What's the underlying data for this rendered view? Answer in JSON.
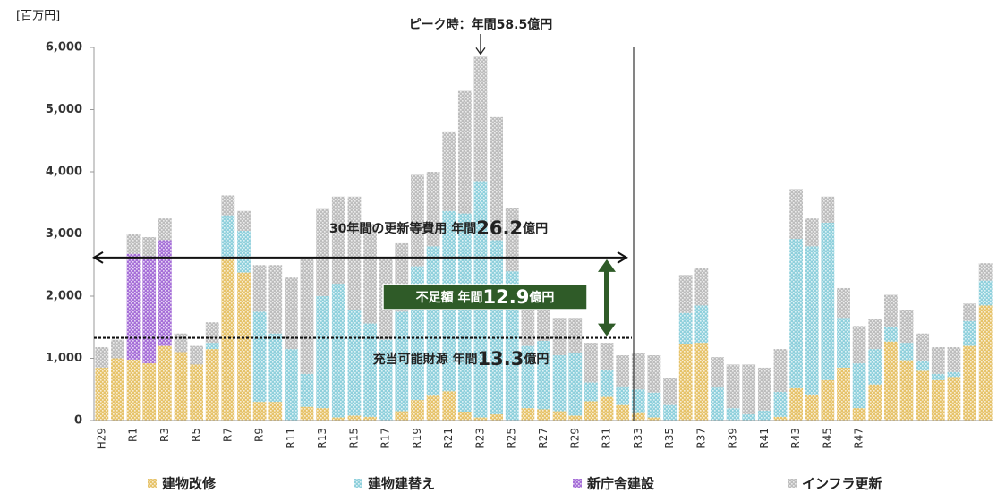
{
  "chart_data": {
    "type": "stacked_bar",
    "y_label": "[百万円]",
    "categories": [
      "H29",
      null,
      "R1",
      null,
      "R3",
      null,
      "R5",
      null,
      "R7",
      null,
      "R9",
      null,
      "R11",
      null,
      "R13",
      null,
      "R15",
      null,
      "R17",
      null,
      "R19",
      null,
      "R21",
      null,
      "R23",
      null,
      "R25",
      null,
      "R27",
      null,
      "R29",
      null,
      "R31",
      null,
      "R33",
      null,
      "R35",
      null,
      "R37",
      null,
      "R39",
      null,
      "R41",
      null,
      "R43",
      null,
      "R45",
      null,
      "R47",
      null,
      null,
      null,
      null,
      null,
      null,
      null,
      null
    ],
    "series": [
      {
        "name": "建物改修",
        "color": "#e6c36a",
        "values": [
          850,
          1000,
          980,
          920,
          1200,
          1100,
          900,
          1150,
          2600,
          2380,
          300,
          300,
          0,
          220,
          200,
          50,
          80,
          60,
          0,
          150,
          330,
          400,
          470,
          130,
          50,
          100,
          0,
          200,
          180,
          150,
          80,
          310,
          380,
          250,
          120,
          50,
          0,
          1230,
          1250,
          0,
          0,
          0,
          0,
          60,
          520,
          420,
          650,
          850,
          200,
          580,
          1270,
          970,
          800,
          650,
          700,
          1200,
          1850
        ]
      },
      {
        "name": "建物建替え",
        "color": "#8fd0dc",
        "values": [
          0,
          0,
          0,
          0,
          0,
          0,
          0,
          100,
          700,
          670,
          1450,
          1100,
          1150,
          530,
          1800,
          2150,
          1700,
          1500,
          1300,
          1600,
          2150,
          2400,
          2900,
          3200,
          3800,
          2800,
          2400,
          1000,
          1100,
          900,
          1000,
          300,
          430,
          300,
          380,
          400,
          250,
          500,
          600,
          530,
          200,
          100,
          160,
          400,
          2400,
          2380,
          2530,
          800,
          720,
          570,
          230,
          280,
          150,
          100,
          80,
          400,
          400
        ]
      },
      {
        "name": "新庁舎建設",
        "color": "#a66fd8",
        "values": [
          0,
          0,
          1700,
          1720,
          1700,
          0,
          0,
          0,
          0,
          0,
          0,
          0,
          0,
          0,
          0,
          0,
          0,
          0,
          0,
          0,
          0,
          0,
          0,
          0,
          0,
          0,
          0,
          0,
          0,
          0,
          0,
          0,
          0,
          0,
          0,
          0,
          0,
          0,
          0,
          0,
          0,
          0,
          0,
          0,
          0,
          0,
          0,
          0,
          0,
          0,
          0,
          0,
          0,
          0,
          0,
          0,
          0
        ]
      },
      {
        "name": "インフラ更新",
        "color": "#bdbdbd",
        "values": [
          330,
          300,
          320,
          310,
          350,
          300,
          300,
          330,
          320,
          320,
          750,
          1100,
          1150,
          1870,
          1400,
          1400,
          1820,
          1600,
          1300,
          1100,
          1470,
          1200,
          1280,
          1970,
          2000,
          1980,
          1020,
          600,
          520,
          600,
          570,
          640,
          440,
          500,
          580,
          600,
          430,
          610,
          600,
          490,
          700,
          800,
          690,
          690,
          800,
          450,
          420,
          480,
          600,
          490,
          520,
          530,
          450,
          430,
          400,
          280,
          280
        ]
      }
    ],
    "ylim": [
      0,
      6000
    ],
    "yticks": [
      0,
      {
        "value": 1000,
        "label": "1,000"
      },
      {
        "value": 2000,
        "label": "2,000"
      },
      {
        "value": 3000,
        "label": "3,000"
      },
      {
        "value": 4000,
        "label": "4,000"
      },
      {
        "value": 5000,
        "label": "5,000"
      },
      {
        "value": 6000,
        "label": "6,000"
      }
    ],
    "grid": false,
    "legend": "bottom",
    "annotations": [
      {
        "text": "ピーク時：年間58.5億円"
      },
      {
        "text": "30年間の更新等費用  年間",
        "value": "26.2",
        "unit": "億円",
        "line": 2620
      },
      {
        "text": "不足額  年間",
        "value": "12.9",
        "unit": "億円"
      },
      {
        "text": "充当可能財源  年間",
        "value": "13.3",
        "unit": "億円",
        "line": 1330
      }
    ]
  }
}
